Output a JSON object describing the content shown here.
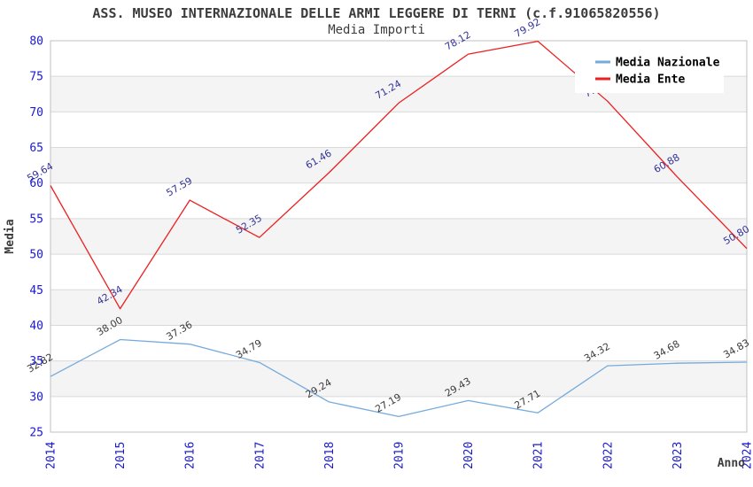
{
  "title": "ASS. MUSEO INTERNAZIONALE DELLE ARMI LEGGERE DI TERNI (c.f.91065820556)",
  "subtitle": "Media Importi",
  "chart_data": {
    "type": "line",
    "x": [
      2014,
      2015,
      2016,
      2017,
      2018,
      2019,
      2020,
      2021,
      2022,
      2023,
      2024
    ],
    "xlabel": "Anno",
    "ylabel": "Media",
    "ylim": [
      25,
      80
    ],
    "ytick_step": 5,
    "grid": "horizontal",
    "legend_position": "top-right",
    "series": [
      {
        "name": "Media Nazionale",
        "color": "#74aadc",
        "label_color": "#3c3c3c",
        "values": [
          32.82,
          38.0,
          37.36,
          34.79,
          29.24,
          27.19,
          29.43,
          27.71,
          34.32,
          34.68,
          34.83
        ]
      },
      {
        "name": "Media Ente",
        "color": "#ec2020",
        "label_color": "#333399",
        "values": [
          59.64,
          42.34,
          57.59,
          52.35,
          61.46,
          71.24,
          78.12,
          79.92,
          71.5,
          60.88,
          50.8
        ]
      }
    ],
    "colors": {
      "tick_label": "#1a1acd",
      "axis_title": "#3c3c3c",
      "band_fill": "#f4f4f4",
      "gridline": "#d9d9d9",
      "plot_border": "#c0c0c0",
      "legend_text": "#000000",
      "legend_bg": "#ffffff"
    }
  }
}
